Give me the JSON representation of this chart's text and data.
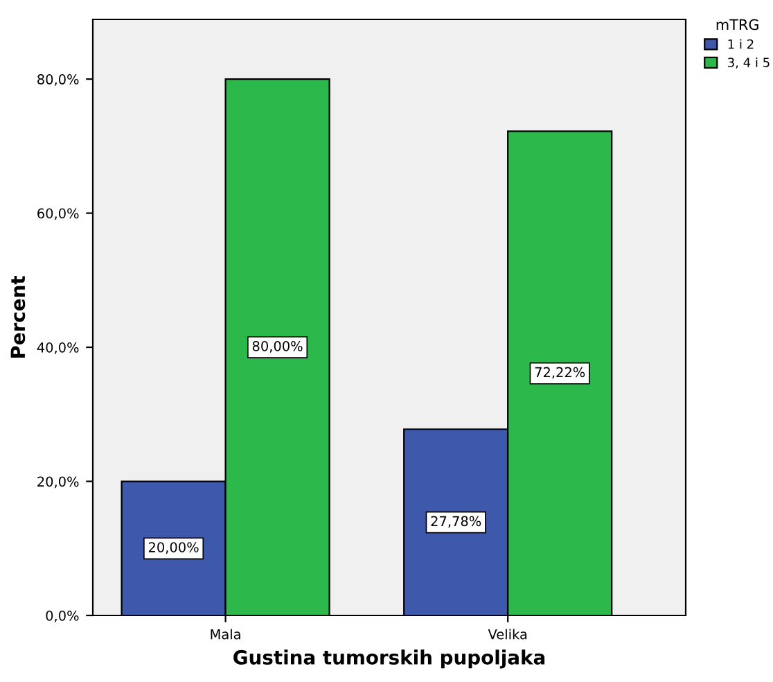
{
  "chart_data": {
    "type": "bar",
    "xlabel": "Gustina tumorskih pupoljaka",
    "ylabel": "Percent",
    "legend_title": "mTRG",
    "categories": [
      "Mala",
      "Velika"
    ],
    "series": [
      {
        "name": "1 i 2",
        "color": "#3e58ac",
        "values": [
          20.0,
          27.78
        ],
        "value_labels": [
          "20,00%",
          "27,78%"
        ]
      },
      {
        "name": "3, 4 i 5",
        "color": "#2db84c",
        "values": [
          80.0,
          72.22
        ],
        "value_labels": [
          "80,00%",
          "72,22%"
        ]
      }
    ],
    "ylim": [
      0,
      88.9
    ],
    "yticks": [
      {
        "value": 0,
        "label": "0,0%"
      },
      {
        "value": 20,
        "label": "20,0%"
      },
      {
        "value": 40,
        "label": "40,0%"
      },
      {
        "value": 60,
        "label": "60,0%"
      },
      {
        "value": 80,
        "label": "80,0%"
      }
    ],
    "grid": false,
    "legend": "top right"
  }
}
